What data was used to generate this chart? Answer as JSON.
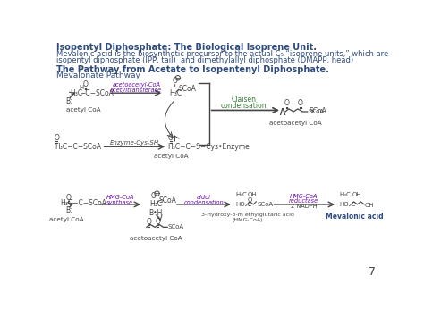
{
  "bg_color": "#ffffff",
  "title1_bold": "Isopentyl Diphosphate: The Biological Isoprene Unit.",
  "title2_line1": "Mevalonic acid is the biosynthetic precursor to the actual C₅ “isoprene units,” which are",
  "title2_line2": "isopentyl diphosphate (IPP, tail)  and dimethylallyl diphosphate (DMAPP, head)",
  "subtitle1": "The Pathway from Acetate to Isopentenyl Diphosphate.",
  "subtitle2": "Mevalonate Pathway",
  "page_num": "7",
  "heading_color": "#2e4a7a",
  "text_color": "#2e4a7a",
  "enzyme_color": "#6a0dad",
  "green_color": "#3a7a3a",
  "arrow_color": "#444444",
  "struct_color": "#444444"
}
